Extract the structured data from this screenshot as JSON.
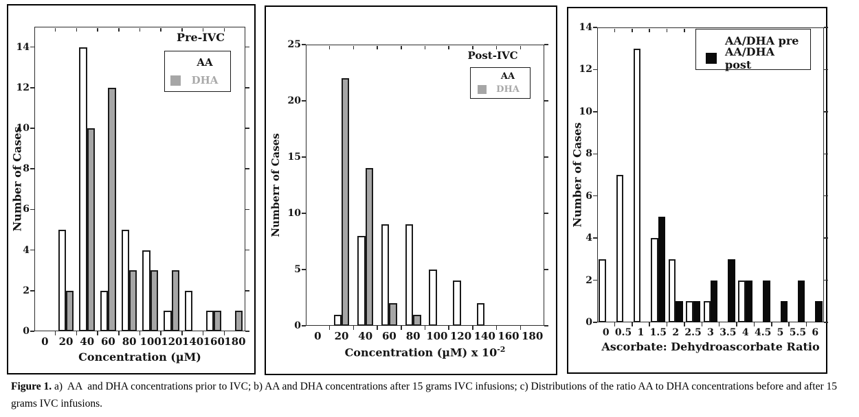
{
  "figure": {
    "caption_bold": "Figure 1.",
    "caption_text": " a)  AA  and DHA concentrations prior to IVC; b) AA and DHA concentrations after 15 grams IVC infusions; c) Distributions of the ratio AA to DHA concentrations before and after 15 grams IVC infusions."
  },
  "colors": {
    "bar_white": "#ffffff",
    "bar_gray": "#a6a6a6",
    "bar_black": "#0a0a0a",
    "bar_border": "#1a1a1a",
    "axis": "#2b2b2b",
    "text": "#141414",
    "dha_legend_text": "#a9a9a9"
  },
  "chart_data": [
    {
      "type": "bar",
      "panel": "a",
      "title": "Pre-IVC",
      "categories": [
        "0",
        "20",
        "40",
        "60",
        "80",
        "100",
        "120",
        "140",
        "160",
        "180"
      ],
      "series": [
        {
          "name": "AA",
          "color_key": "white",
          "values": [
            0,
            5,
            14,
            2,
            5,
            4,
            1,
            2,
            1,
            0
          ]
        },
        {
          "name": "DHA",
          "color_key": "gray",
          "values": [
            0,
            2,
            10,
            12,
            3,
            3,
            3,
            0,
            1,
            1
          ]
        }
      ],
      "xlabel": "Concentration (µM)",
      "xlabel_sup": "",
      "ylabel": "Number of Cases",
      "ylim": [
        0,
        15
      ],
      "ytick_step": 2,
      "ytick_max": 14,
      "legend_position": "upper-right",
      "grid": false
    },
    {
      "type": "bar",
      "panel": "b",
      "title": "Post-IVC",
      "categories": [
        "0",
        "20",
        "40",
        "60",
        "80",
        "100",
        "120",
        "140",
        "160",
        "180"
      ],
      "series": [
        {
          "name": "AA",
          "color_key": "white",
          "values": [
            0,
            1,
            8,
            9,
            9,
            5,
            4,
            2,
            0,
            0
          ]
        },
        {
          "name": "DHA",
          "color_key": "gray",
          "values": [
            0,
            22,
            14,
            2,
            1,
            0,
            0,
            0,
            0,
            0
          ]
        }
      ],
      "xlabel": "Concentration (µM) x 10",
      "xlabel_sup": "-2",
      "ylabel": "Numberr of Cases",
      "ylim": [
        0,
        25
      ],
      "ytick_step": 5,
      "ytick_max": 25,
      "legend_position": "upper-right",
      "grid": false
    },
    {
      "type": "bar",
      "panel": "c",
      "title": "",
      "categories": [
        "0",
        "0.5",
        "1",
        "1.5",
        "2",
        "2.5",
        "3",
        "3.5",
        "4",
        "4.5",
        "5",
        "5.5",
        "6"
      ],
      "series": [
        {
          "name": "AA/DHA pre",
          "color_key": "white",
          "values": [
            3,
            7,
            13,
            4,
            3,
            1,
            1,
            0,
            2,
            0,
            0,
            0,
            0
          ]
        },
        {
          "name": "AA/DHA post",
          "color_key": "black",
          "values": [
            0,
            0,
            0,
            5,
            1,
            1,
            2,
            3,
            2,
            2,
            1,
            2,
            1
          ]
        }
      ],
      "xlabel": "Ascorbate: Dehydroascorbate Ratio",
      "xlabel_sup": "",
      "ylabel": "Number of Cases",
      "ylim": [
        0,
        14
      ],
      "ytick_step": 2,
      "ytick_max": 14,
      "legend_position": "upper-right",
      "grid": false
    }
  ]
}
